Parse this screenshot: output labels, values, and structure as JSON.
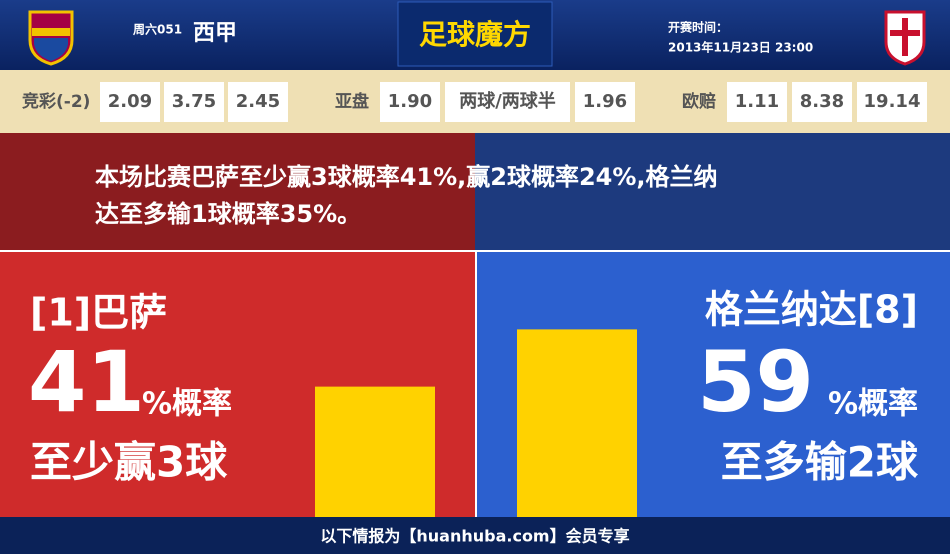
{
  "header": {
    "weekday_code": "周六051",
    "league": "西甲",
    "brand": "足球魔方",
    "kickoff_label": "开赛时间：",
    "kickoff_time": "2013年11月23日 23:00"
  },
  "odds": [
    {
      "label": "竞彩(-2)",
      "values": [
        "2.09",
        "3.75",
        "2.45"
      ]
    },
    {
      "label": "亚盘",
      "values": [
        "1.90",
        "两球/两球半",
        "1.96"
      ]
    },
    {
      "label": "欧赔",
      "values": [
        "1.11",
        "8.38",
        "19.14"
      ]
    }
  ],
  "summary": [
    "本场比赛巴萨至少赢3球概率41%,赢2球概率24%,格兰纳",
    "达至多输1球概率35%。"
  ],
  "teams": [
    {
      "name": "[1]巴萨",
      "probability": 41,
      "unit": "%概率",
      "outcome": "至少赢3球"
    },
    {
      "name": "格兰纳达[8]",
      "probability": 59,
      "unit": "%概率",
      "outcome": "至多输2球"
    }
  ],
  "footer": "以下情报为【huanhuba.com】会员专享"
}
